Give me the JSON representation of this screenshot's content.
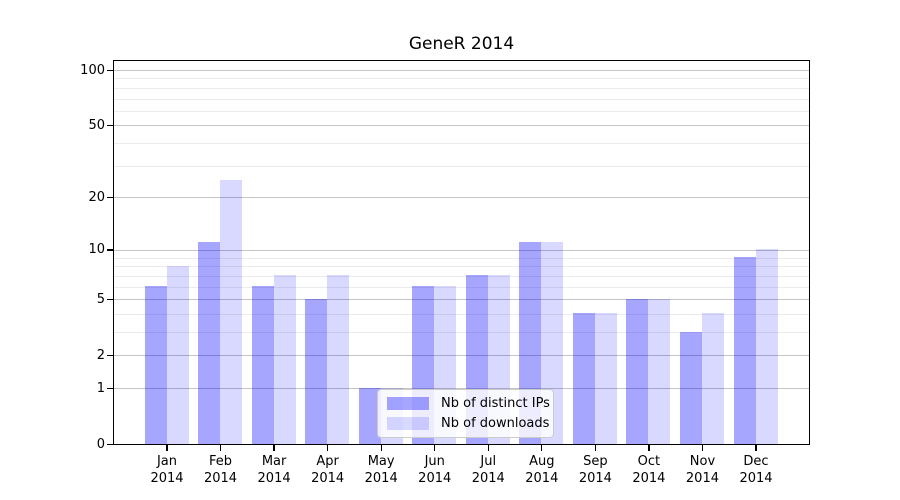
{
  "chart_data": {
    "type": "bar",
    "title": "GeneR 2014",
    "categories": [
      "Jan",
      "Feb",
      "Mar",
      "Apr",
      "May",
      "Jun",
      "Jul",
      "Aug",
      "Sep",
      "Oct",
      "Nov",
      "Dec"
    ],
    "category_year": "2014",
    "series": [
      {
        "name": "Nb of distinct IPs",
        "color": "rgba(0,0,255,0.35)",
        "color_hex": "#a6a6ff",
        "values": [
          6,
          11,
          6,
          5,
          1,
          6,
          7,
          11,
          4,
          5,
          3,
          9
        ]
      },
      {
        "name": "Nb of downloads",
        "color": "rgba(0,0,255,0.15)",
        "color_hex": "#d9d9ff",
        "values": [
          8,
          25,
          7,
          7,
          1,
          6,
          7,
          11,
          4,
          5,
          4,
          10
        ]
      }
    ],
    "yscale": "log1p",
    "ylim": [
      0,
      114
    ],
    "yticks_major": [
      0,
      1,
      2,
      5,
      10,
      20,
      50,
      100
    ],
    "yticks_minor": [
      3,
      4,
      6,
      7,
      8,
      9,
      30,
      40,
      60,
      70,
      80,
      90
    ],
    "xlabel": "",
    "ylabel": "",
    "grid": true,
    "legend_position": "inside-bottom-center"
  },
  "colors": {
    "background": "#ffffff",
    "axis": "#000000",
    "grid_major": "#c4c4c4",
    "grid_minor": "#ebebeb",
    "tick_text": "#000000",
    "legend_border": "#cccccc"
  }
}
